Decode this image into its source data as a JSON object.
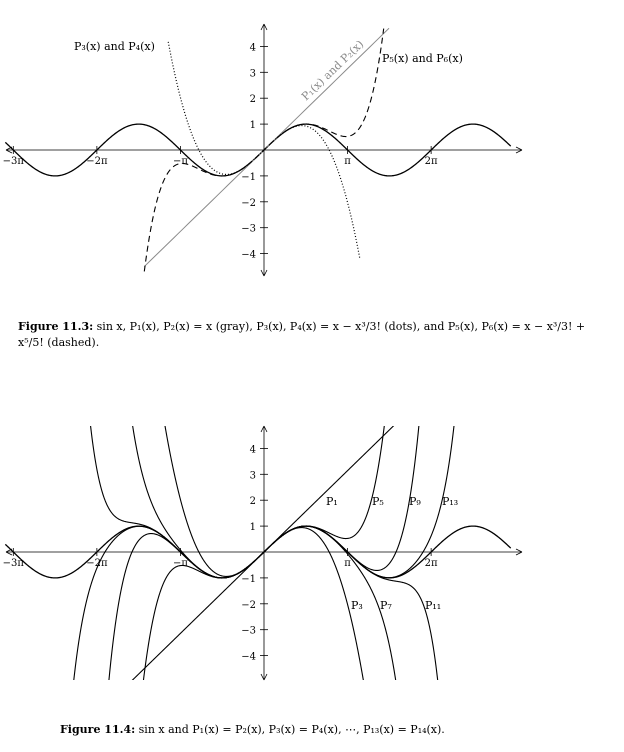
{
  "figure1": {
    "labels": {
      "p3p4": "P₃(x) and P₄(x)",
      "p5p6": "P₅(x) and P₆(x)",
      "p1p2": "P₁(x) and P₂(x)"
    },
    "caption_label": "Figure 11.3:",
    "caption_text": "sin x, P₁(x), P₂(x) = x (gray), P₃(x), P₄(x) = x − x³/3! (dots), and P₅(x), P₆(x) = x − x³/3! + x⁵/5! (dashed)."
  },
  "figure2": {
    "labels": {
      "p1": "P₁",
      "p5": "P₅",
      "p9": "P₉",
      "p13": "P₁₃",
      "p3": "P₃",
      "p7": "P₇",
      "p11": "P₁₁"
    },
    "caption_label": "Figure 11.4:",
    "caption_text": "sin x and P₁(x) = P₂(x), P₃(x) = P₄(x), ⋯, P₁₃(x) = P₁₄(x)."
  },
  "x_tick_labels": [
    "−3π",
    "−2π",
    "−π",
    "π",
    "2π"
  ],
  "y_tick_labels": [
    "4",
    "3",
    "2",
    "1",
    "−1",
    "−2",
    "−3",
    "−4"
  ],
  "colors": {
    "curve": "#000000",
    "gray_line": "#8a8a8a"
  }
}
